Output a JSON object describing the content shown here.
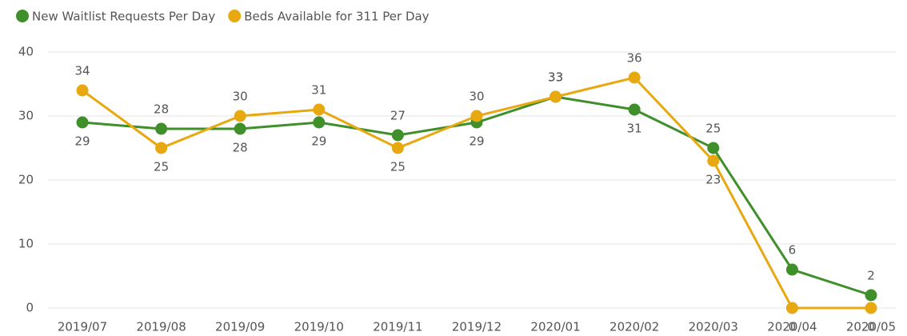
{
  "chart_data": {
    "type": "line",
    "categories": [
      "2019/07",
      "2019/08",
      "2019/09",
      "2019/10",
      "2019/11",
      "2019/12",
      "2020/01",
      "2020/02",
      "2020/03",
      "2020/04",
      "2020/05"
    ],
    "series": [
      {
        "name": "New Waitlist Requests Per Day",
        "color": "#3f8f2a",
        "values": [
          29,
          28,
          28,
          29,
          27,
          29,
          33,
          31,
          25,
          6,
          2
        ]
      },
      {
        "name": "Beds Available for 311 Per Day",
        "color": "#e8a810",
        "values": [
          34,
          25,
          30,
          31,
          25,
          30,
          33,
          36,
          23,
          0,
          0
        ]
      }
    ],
    "ylim": [
      0,
      40
    ],
    "yticks": [
      0,
      10,
      20,
      30,
      40
    ],
    "grid": true,
    "legend": "top-left"
  }
}
